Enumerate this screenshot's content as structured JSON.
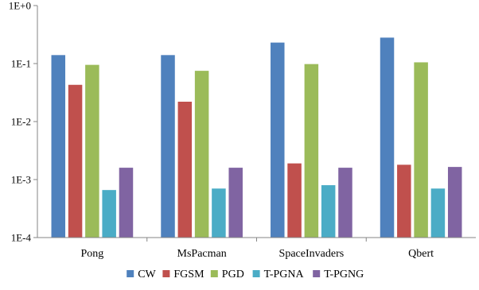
{
  "chart_data": {
    "type": "bar",
    "title": "",
    "xlabel": "",
    "ylabel": "",
    "scale": "log",
    "ylim": [
      0.0001,
      1
    ],
    "yticks": [
      {
        "value": 0.0001,
        "label": "1E-4"
      },
      {
        "value": 0.001,
        "label": "1E-3"
      },
      {
        "value": 0.01,
        "label": "1E-2"
      },
      {
        "value": 0.1,
        "label": "1E-1"
      },
      {
        "value": 1,
        "label": "1E+0"
      }
    ],
    "grid": false,
    "legend": "bottom",
    "categories": [
      "Pong",
      "MsPacman",
      "SpaceInvaders",
      "Qbert"
    ],
    "series": [
      {
        "name": "CW",
        "color": "#4f81bd",
        "values": [
          0.14,
          0.14,
          0.23,
          0.28
        ]
      },
      {
        "name": "FGSM",
        "color": "#c0504d",
        "values": [
          0.043,
          0.022,
          0.0019,
          0.0018
        ]
      },
      {
        "name": "PGD",
        "color": "#9bbb59",
        "values": [
          0.095,
          0.075,
          0.098,
          0.105
        ]
      },
      {
        "name": "T-PGNA",
        "color": "#4bacc6",
        "values": [
          0.00066,
          0.0007,
          0.0008,
          0.0007
        ]
      },
      {
        "name": "T-PGNG",
        "color": "#8064a2",
        "values": [
          0.0016,
          0.0016,
          0.0016,
          0.00165
        ]
      }
    ]
  }
}
